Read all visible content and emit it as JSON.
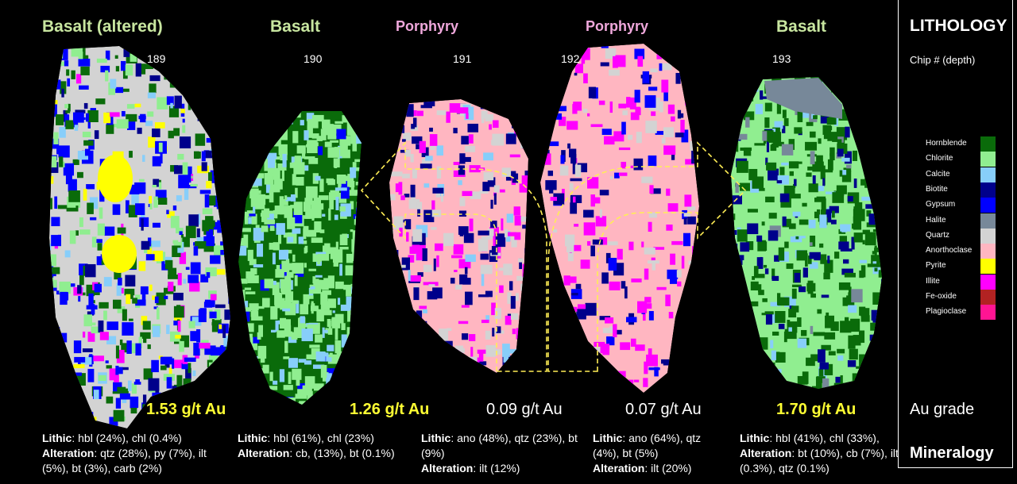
{
  "legend": {
    "title": "LITHOLOGY",
    "subtitle": "Chip # (depth)",
    "items": [
      {
        "label": "Hornblende",
        "color": "#0a6b0a"
      },
      {
        "label": "Chlorite",
        "color": "#90ee90"
      },
      {
        "label": "Calcite",
        "color": "#87cefa"
      },
      {
        "label": "Biotite",
        "color": "#00008b"
      },
      {
        "label": "Gypsum",
        "color": "#0000ff"
      },
      {
        "label": "Halite",
        "color": "#778899"
      },
      {
        "label": "Quartz",
        "color": "#d3d3d3"
      },
      {
        "label": "Anorthoclase",
        "color": "#ffb6c1"
      },
      {
        "label": "Pyrite",
        "color": "#ffff00"
      },
      {
        "label": "Illite",
        "color": "#ff00ff"
      },
      {
        "label": "Fe-oxide",
        "color": "#b22222"
      },
      {
        "label": "Plagioclase",
        "color": "#ff1493"
      }
    ],
    "au_grade_label": "Au grade",
    "mineralogy_label": "Mineralogy"
  },
  "chips": [
    {
      "rock": "Basalt (altered)",
      "rock_color": "#c8e6a0",
      "number": "189",
      "grade": "1.53 g/t Au",
      "high": true,
      "lithic_label": "Lithic",
      "lithic": ": hbl (24%), chl (0.4%)",
      "alteration_label": "Alteration",
      "alteration": ": qtz (28%), py (7%), ilt (5%), bt (3%), carb (2%)"
    },
    {
      "rock": "Basalt",
      "rock_color": "#c8e6a0",
      "number": "190",
      "grade": "1.26 g/t Au",
      "high": true,
      "lithic_label": "Lithic",
      "lithic": ": hbl (61%), chl (23%)",
      "alteration_label": "Alteration",
      "alteration": ": cb, (13%), bt (0.1%)"
    },
    {
      "rock": "Porphyry",
      "rock_color": "#f0a8dc",
      "number": "191",
      "grade": "0.09 g/t Au",
      "high": false,
      "lithic_label": "Lithic",
      "lithic": ": ano (48%), qtz (23%), bt (9%)",
      "alteration_label": "Alteration",
      "alteration": ": ilt (12%)"
    },
    {
      "rock": "Porphyry",
      "rock_color": "#f0a8dc",
      "number": "192",
      "grade": "0.07 g/t Au",
      "high": false,
      "lithic_label": "Lithic",
      "lithic": ": ano (64%), qtz (4%), bt (5%)",
      "alteration_label": "Alteration",
      "alteration": ": ilt (20%)"
    },
    {
      "rock": "Basalt",
      "rock_color": "#c8e6a0",
      "number": "193",
      "grade": "1.70 g/t Au",
      "high": true,
      "lithic_label": "Lithic",
      "lithic": ": hbl (41%), chl (33%),",
      "alteration_label": "Alteration",
      "alteration": ": bt (10%), cb (7%), ilt (0.3%), qtz (0.1%)"
    }
  ]
}
